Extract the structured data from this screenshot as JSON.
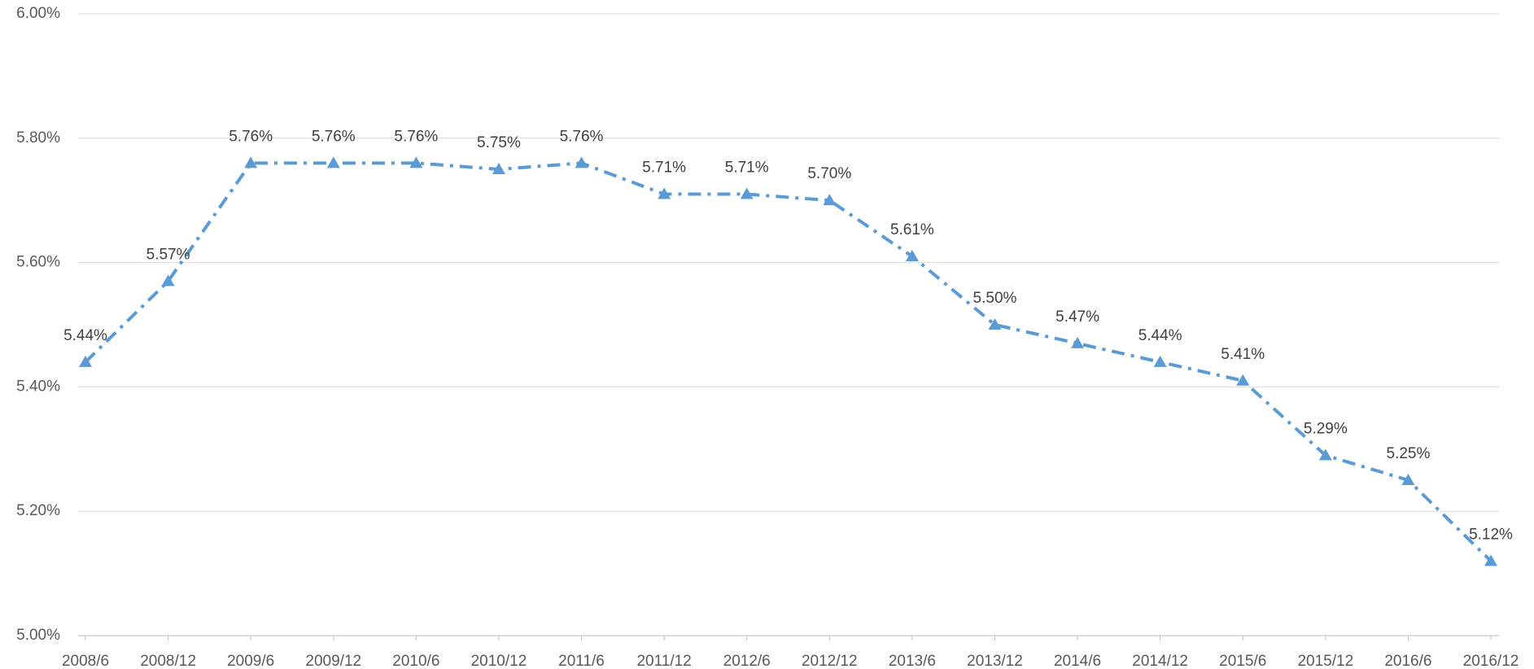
{
  "chart_data": {
    "type": "line",
    "categories": [
      "2008/6",
      "2008/12",
      "2009/6",
      "2009/12",
      "2010/6",
      "2010/12",
      "2011/6",
      "2011/12",
      "2012/6",
      "2012/12",
      "2013/6",
      "2013/12",
      "2014/6",
      "2014/12",
      "2015/6",
      "2015/12",
      "2016/6",
      "2016/12"
    ],
    "values": [
      5.44,
      5.57,
      5.76,
      5.76,
      5.76,
      5.75,
      5.76,
      5.71,
      5.71,
      5.7,
      5.61,
      5.5,
      5.47,
      5.44,
      5.41,
      5.29,
      5.25,
      5.12
    ],
    "value_labels": [
      "5.44%",
      "5.57%",
      "5.76%",
      "5.76%",
      "5.76%",
      "5.75%",
      "5.76%",
      "5.71%",
      "5.71%",
      "5.70%",
      "5.61%",
      "5.50%",
      "5.47%",
      "5.44%",
      "5.41%",
      "5.29%",
      "5.25%",
      "5.12%"
    ],
    "color": "#5b9bd5",
    "ylim": [
      5.0,
      6.0
    ],
    "yticks": [
      {
        "value": 5.0,
        "label": "5.00%"
      },
      {
        "value": 5.2,
        "label": "5.20%"
      },
      {
        "value": 5.4,
        "label": "5.40%"
      },
      {
        "value": 5.6,
        "label": "5.60%"
      },
      {
        "value": 5.8,
        "label": "5.80%"
      },
      {
        "value": 6.0,
        "label": "6.00%"
      }
    ],
    "grid": true
  }
}
